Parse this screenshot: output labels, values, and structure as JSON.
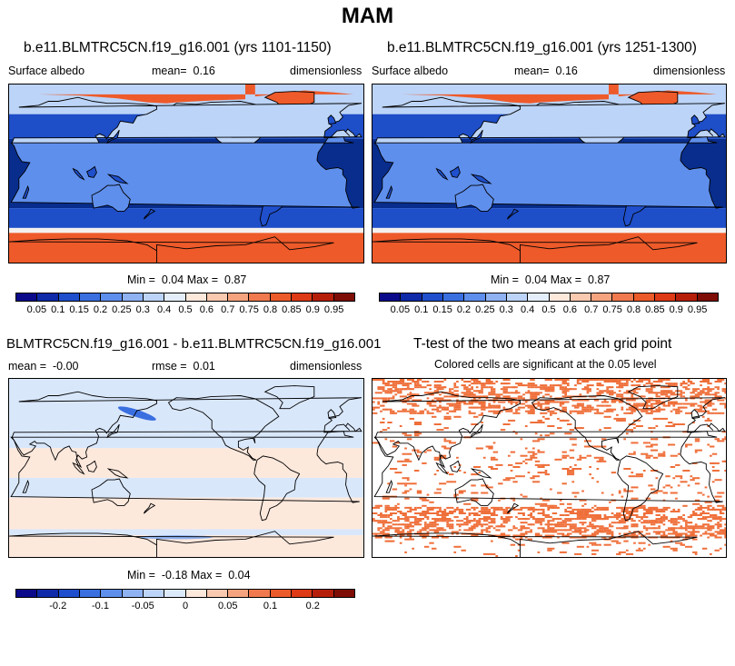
{
  "figure": {
    "title": "MAM"
  },
  "panel1": {
    "title": "b.e11.BLMTRC5CN.f19_g16.001 (yrs 1101-1150)",
    "variable": "Surface albedo",
    "mean_label": "mean=",
    "mean_value": "0.16",
    "units": "dimensionless",
    "min_label": "Min =",
    "min_value": "0.04",
    "max_label": "Max =",
    "max_value": "0.87"
  },
  "panel2": {
    "title": "b.e11.BLMTRC5CN.f19_g16.001 (yrs 1251-1300)",
    "variable": "Surface albedo",
    "mean_label": "mean=",
    "mean_value": "0.16",
    "units": "dimensionless",
    "min_label": "Min =",
    "min_value": "0.04",
    "max_label": "Max =",
    "max_value": "0.87"
  },
  "panel3": {
    "title": "BLMTRC5CN.f19_g16.001 - b.e11.BLMTRC5CN.f19_g16.001",
    "mean_label": "mean =",
    "mean_value": "-0.00",
    "rmse_label": "rmse =",
    "rmse_value": "0.01",
    "units": "dimensionless",
    "min_label": "Min =",
    "min_value": "-0.18",
    "max_label": "Max =",
    "max_value": "0.04"
  },
  "panel4": {
    "title": "T-test of the two means at each grid point",
    "subtitle": "Colored cells are significant at the 0.05 level"
  },
  "colorbar_abs": {
    "colors": [
      "#0a0a8a",
      "#0f2aa8",
      "#1f4fcc",
      "#3a6fe0",
      "#5f8fec",
      "#8fb2f2",
      "#bcd4f7",
      "#e4eefb",
      "#fde8dc",
      "#f9c9b0",
      "#f5a47f",
      "#f07a4e",
      "#ec5b2a",
      "#dd3a15",
      "#b51f0a",
      "#7d0d05"
    ],
    "ticks": [
      "0.05",
      "0.1",
      "0.15",
      "0.2",
      "0.25",
      "0.3",
      "0.4",
      "0.5",
      "0.6",
      "0.7",
      "0.75",
      "0.8",
      "0.85",
      "0.9",
      "0.95"
    ]
  },
  "colorbar_diff": {
    "colors": [
      "#0a0a8a",
      "#0f2aa8",
      "#1f4fcc",
      "#3a6fe0",
      "#5f8fec",
      "#8fb2f2",
      "#bcd4f7",
      "#dce9fa",
      "#fde8dc",
      "#f9c9b0",
      "#f5a47f",
      "#f07a4e",
      "#ec5b2a",
      "#dd3a15",
      "#b51f0a",
      "#7d0d05"
    ],
    "ticks": [
      "-0.2",
      "-0.1",
      "-0.05",
      "0",
      "0.05",
      "0.1",
      "0.2"
    ],
    "tick_positions": [
      2,
      4,
      6,
      8,
      10,
      12,
      14
    ]
  },
  "map_colors": {
    "ocean": "#082d8c",
    "ocean_mid": "#1e4ec8",
    "ice": "#ee5a2a",
    "ice_edge": "#f4f0ee",
    "land_low": "#1f4fcc",
    "land_mid": "#5f8fec",
    "land_high": "#bcd4f7",
    "diff_pos": "#fde8dc",
    "diff_neg": "#d9e7fb",
    "sig": "#ef6f3a"
  }
}
